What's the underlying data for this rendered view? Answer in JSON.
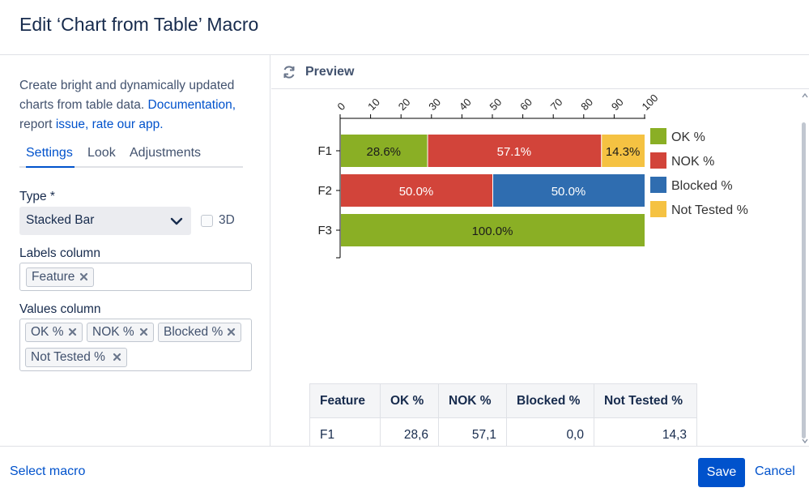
{
  "dialog": {
    "title": "Edit ‘Chart from Table’ Macro"
  },
  "sidebar": {
    "description_text": "Create bright and dynamically updated charts from table data.",
    "documentation_link": "Documentation,",
    "report_text": "report",
    "issue_link": "issue,",
    "rate_link": "rate our app."
  },
  "tabs": [
    {
      "label": "Settings"
    },
    {
      "label": "Look"
    },
    {
      "label": "Adjustments"
    }
  ],
  "type_field": {
    "label": "Type *",
    "value": "Stacked Bar",
    "checkbox_label": "3D"
  },
  "labels_field": {
    "label": "Labels column",
    "chips": [
      "Feature"
    ]
  },
  "values_field": {
    "label": "Values column",
    "chips": [
      "OK %",
      "NOK %",
      "Blocked %",
      "Not Tested %"
    ]
  },
  "preview": {
    "label": "Preview"
  },
  "colors": {
    "ok": "#8aaf25",
    "nok": "#d2443a",
    "blocked": "#2f6db0",
    "not_tested": "#f5c242"
  },
  "chart_data": {
    "type": "bar",
    "orientation": "horizontal",
    "stacked": true,
    "categories": [
      "F1",
      "F2",
      "F3"
    ],
    "series": [
      {
        "name": "OK %",
        "values": [
          28.6,
          0,
          100
        ],
        "labels": [
          "28.6%",
          "",
          "100.0%"
        ]
      },
      {
        "name": "NOK %",
        "values": [
          57.1,
          50,
          0
        ],
        "labels": [
          "57.1%",
          "50.0%",
          ""
        ]
      },
      {
        "name": "Blocked %",
        "values": [
          0,
          50,
          0
        ],
        "labels": [
          "",
          "50.0%",
          ""
        ]
      },
      {
        "name": "Not Tested %",
        "values": [
          14.3,
          0,
          0
        ],
        "labels": [
          "14.3%",
          "",
          ""
        ]
      }
    ],
    "xlim": [
      0,
      100
    ],
    "xticks": [
      "0",
      "10",
      "20",
      "30",
      "40",
      "50",
      "60",
      "70",
      "80",
      "90",
      "100"
    ],
    "legend": "right"
  },
  "table": {
    "headers": [
      "Feature",
      "OK %",
      "NOK %",
      "Blocked %",
      "Not Tested %"
    ],
    "rows": [
      [
        "F1",
        "28,6",
        "57,1",
        "0,0",
        "14,3"
      ]
    ]
  },
  "footer": {
    "select_macro": "Select macro",
    "save": "Save",
    "cancel": "Cancel"
  }
}
